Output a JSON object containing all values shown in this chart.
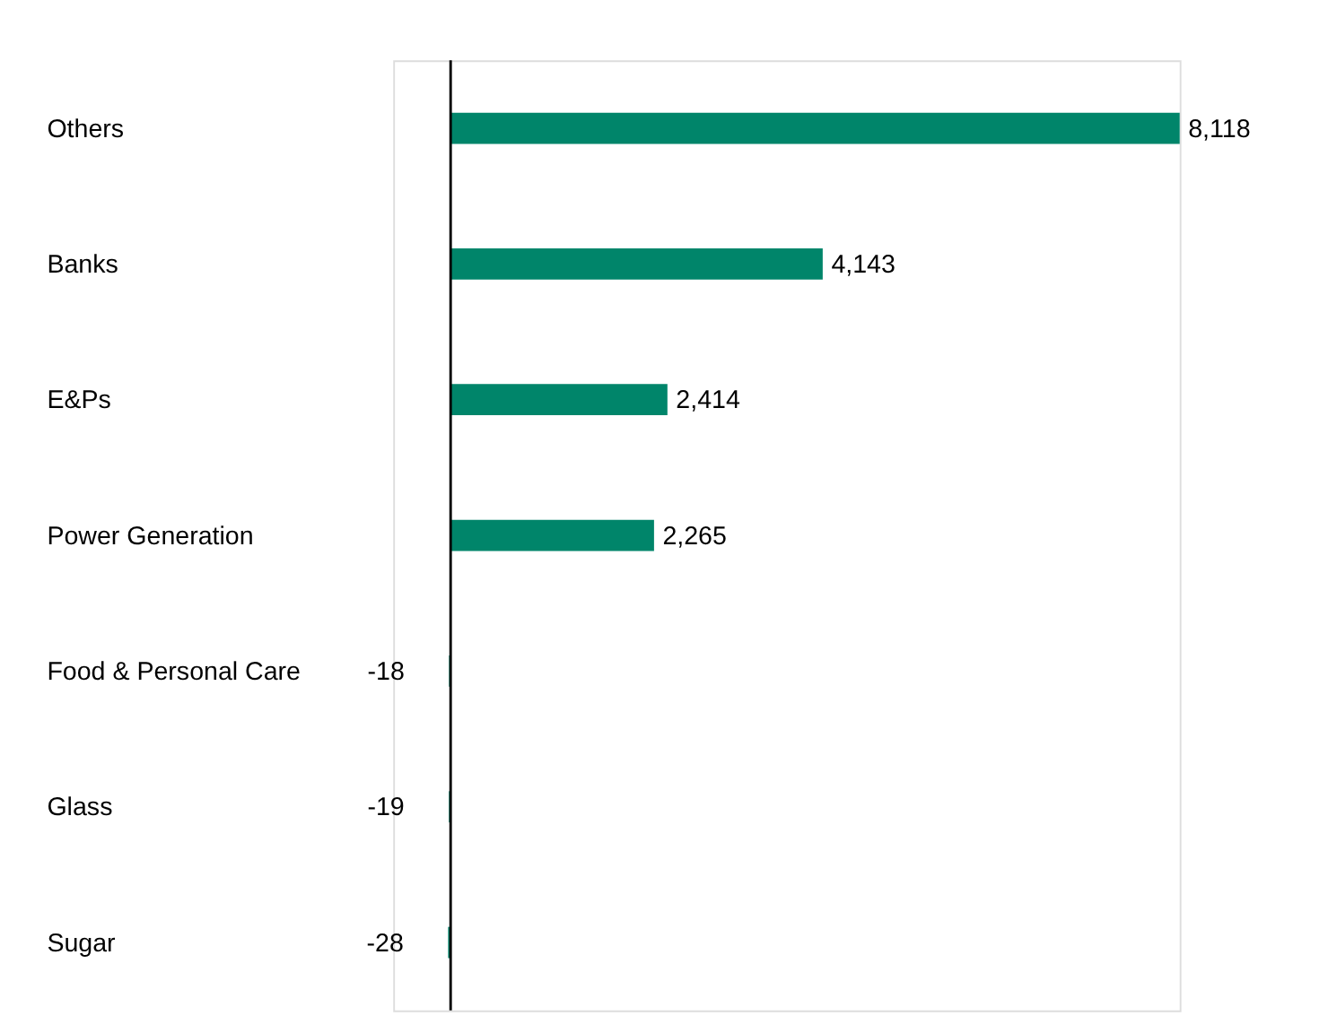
{
  "chart_data": {
    "type": "bar",
    "orientation": "horizontal",
    "categories": [
      "Others",
      "Banks",
      "E&Ps",
      "Power Generation",
      "Food & Personal Care",
      "Glass",
      "Sugar"
    ],
    "values": [
      8118,
      4143,
      2414,
      2265,
      -18,
      -19,
      -28
    ],
    "value_labels": [
      "8,118",
      "4,143",
      "2,414",
      "2,265",
      "-18",
      "-19",
      "-28"
    ],
    "color": "#00856a"
  }
}
